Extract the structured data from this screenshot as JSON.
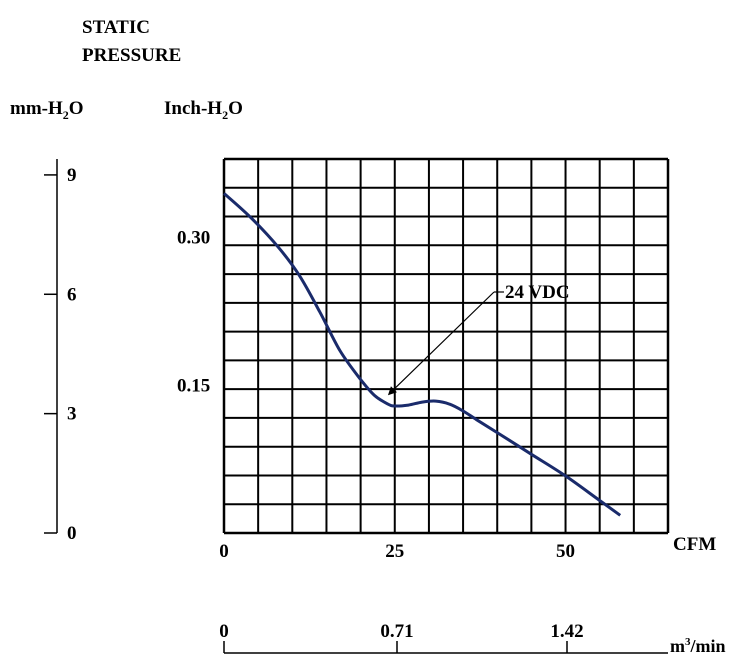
{
  "chart_data": {
    "type": "line",
    "title_lines": [
      "STATIC",
      "PRESSURE"
    ],
    "left_axis": {
      "label": "mm-H2O",
      "ticks": [
        0,
        3,
        6,
        9
      ],
      "range": [
        0,
        9.4
      ]
    },
    "right_axis": {
      "label": "Inch-H2O",
      "ticks": [
        "0.30",
        "0.15"
      ],
      "tick_values": [
        0.3,
        0.15
      ],
      "range": [
        0,
        0.38
      ]
    },
    "x_axis": {
      "label": "CFM",
      "ticks": [
        0,
        25,
        50
      ],
      "range": [
        0,
        65
      ]
    },
    "x2_axis": {
      "label": "m3/min",
      "ticks": [
        "0",
        "0.71",
        "1.42"
      ],
      "tick_values": [
        0,
        0.71,
        1.42
      ]
    },
    "grid": true,
    "series": [
      {
        "name": "24 VDC",
        "color": "#1a2b6b",
        "x": [
          0,
          4,
          8,
          11,
          14,
          17,
          20,
          22,
          24,
          25,
          27,
          29,
          31,
          33,
          35,
          37,
          40,
          45,
          50,
          55,
          58
        ],
        "y": [
          0.345,
          0.32,
          0.29,
          0.262,
          0.225,
          0.185,
          0.156,
          0.14,
          0.131,
          0.129,
          0.13,
          0.133,
          0.134,
          0.131,
          0.124,
          0.115,
          0.102,
          0.08,
          0.058,
          0.033,
          0.018
        ]
      }
    ],
    "annotation": {
      "text": "24 VDC",
      "x": 24,
      "y": 0.14
    }
  },
  "labels": {
    "mm_prefix": "mm-H",
    "mm_suffix": "O",
    "inch_prefix": "Inch-H",
    "inch_suffix": "O",
    "sub2": "2",
    "m3_prefix": "m",
    "m3_sup": "3",
    "m3_suffix": "/min"
  }
}
